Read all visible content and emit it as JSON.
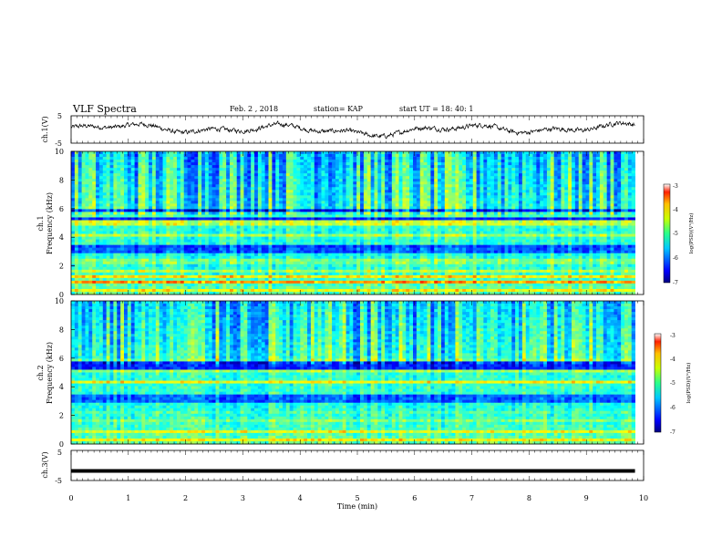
{
  "header": {
    "title": "VLF Spectra",
    "date": "Feb. 2  , 2018",
    "station": "station= KAP",
    "start": "start  UT  =   18: 40: 1"
  },
  "chart_data": [
    {
      "type": "line",
      "name": "ch.1 waveform",
      "ylabel": "ch.1(V)",
      "ylim": [
        -5,
        5
      ],
      "yticks": [
        "5",
        "-5"
      ],
      "xlim": [
        0,
        10
      ],
      "note": "noisy signal oscillating roughly between -3 and 5 V"
    },
    {
      "type": "heatmap",
      "name": "ch.1 spectrogram",
      "ylabel_top": "ch.1",
      "ylabel": "Frequency (kHz)",
      "ylim": [
        0,
        10
      ],
      "yticks": [
        "0",
        "2",
        "4",
        "6",
        "8",
        "10"
      ],
      "xlim": [
        0,
        10
      ],
      "colorbar": {
        "label": "log(PSD)(V²/Hz)",
        "range": [
          -7,
          -3
        ],
        "ticks": [
          "-3",
          "-4",
          "-5",
          "-6",
          "-7"
        ]
      }
    },
    {
      "type": "heatmap",
      "name": "ch.2 spectrogram",
      "ylabel_top": "ch.2",
      "ylabel": "Frequency (kHz)",
      "ylim": [
        0,
        10
      ],
      "yticks": [
        "0",
        "2",
        "4",
        "6",
        "8",
        "10"
      ],
      "xlim": [
        0,
        10
      ],
      "colorbar": {
        "label": "log(PSD)(V²/Hz)",
        "range": [
          -7,
          -3
        ],
        "ticks": [
          "-3",
          "-4",
          "-5",
          "-6",
          "-7"
        ]
      }
    },
    {
      "type": "line",
      "name": "ch.3 waveform",
      "ylabel": "ch.3(V)",
      "ylim": [
        -5,
        5
      ],
      "yticks": [
        "5",
        "-5"
      ],
      "xlim": [
        0,
        10
      ],
      "values_constant": -1.8
    }
  ],
  "xaxis": {
    "label": "Time (min)",
    "ticks": [
      "0",
      "1",
      "2",
      "3",
      "4",
      "5",
      "6",
      "7",
      "8",
      "9",
      "10"
    ],
    "data_end": 9.85
  }
}
